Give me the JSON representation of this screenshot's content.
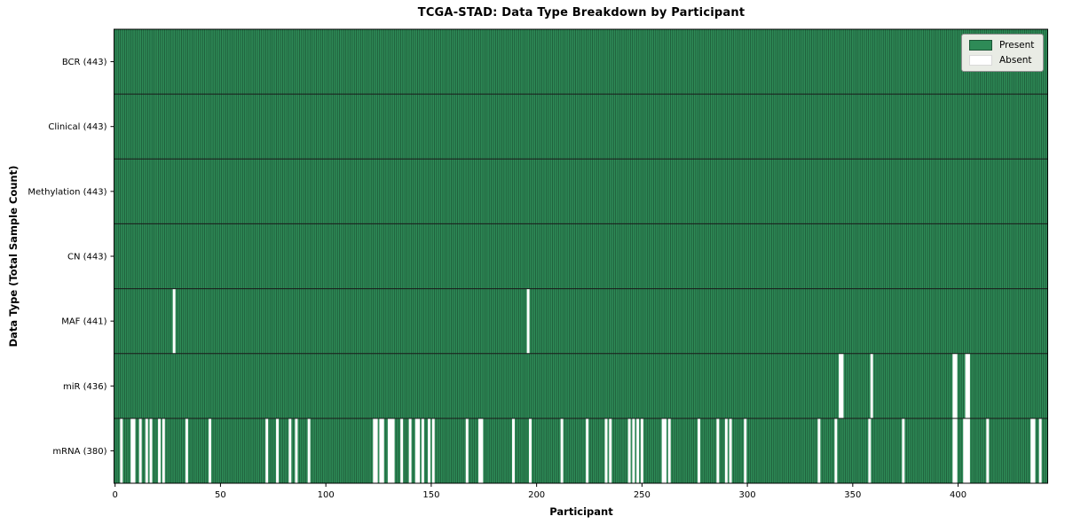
{
  "title": "TCGA-STAD: Data Type Breakdown by Participant",
  "legend": {
    "present_label": "Present",
    "absent_label": "Absent"
  },
  "colors": {
    "present": "#2e8b57",
    "absent": "#ffffff",
    "edge_line": "#17412a",
    "row_divider": "#1a1a1a",
    "plot_border": "#000000",
    "legend_bg": "#e9ece5"
  },
  "chart_data": {
    "type": "heatmap",
    "title": "TCGA-STAD: Data Type Breakdown by Participant",
    "xlabel": "Participant",
    "ylabel": "Data Type (Total Sample Count)",
    "n_participants": 443,
    "x_ticks": [
      0,
      50,
      100,
      150,
      200,
      250,
      300,
      350,
      400
    ],
    "legend_entries": [
      {
        "label": "Present",
        "color": "#2e8b57"
      },
      {
        "label": "Absent",
        "color": "#ffffff"
      }
    ],
    "rows": [
      {
        "data_type": "BCR",
        "label": "BCR (443)",
        "present_count": 443,
        "absent_participants": []
      },
      {
        "data_type": "Clinical",
        "label": "Clinical (443)",
        "present_count": 443,
        "absent_participants": []
      },
      {
        "data_type": "Methylation",
        "label": "Methylation (443)",
        "present_count": 443,
        "absent_participants": []
      },
      {
        "data_type": "CN",
        "label": "CN (443)",
        "present_count": 443,
        "absent_participants": []
      },
      {
        "data_type": "MAF",
        "label": "MAF (441)",
        "present_count": 441,
        "absent_participants": [
          28,
          196
        ]
      },
      {
        "data_type": "miR",
        "label": "miR (436)",
        "present_count": 436,
        "absent_participants": [
          344,
          345,
          359,
          398,
          399,
          404,
          405
        ]
      },
      {
        "data_type": "mRNA",
        "label": "mRNA (380)",
        "present_count": 380,
        "absent_participants": [
          3,
          8,
          9,
          12,
          15,
          17,
          21,
          23,
          34,
          45,
          72,
          77,
          83,
          86,
          92,
          123,
          124,
          126,
          127,
          130,
          131,
          132,
          136,
          140,
          143,
          144,
          146,
          149,
          151,
          167,
          173,
          174,
          189,
          197,
          212,
          224,
          233,
          235,
          244,
          246,
          248,
          250,
          260,
          261,
          263,
          277,
          286,
          290,
          292,
          299,
          334,
          342,
          358,
          374,
          398,
          399,
          403,
          404,
          405,
          414,
          435,
          436,
          439
        ]
      }
    ]
  }
}
